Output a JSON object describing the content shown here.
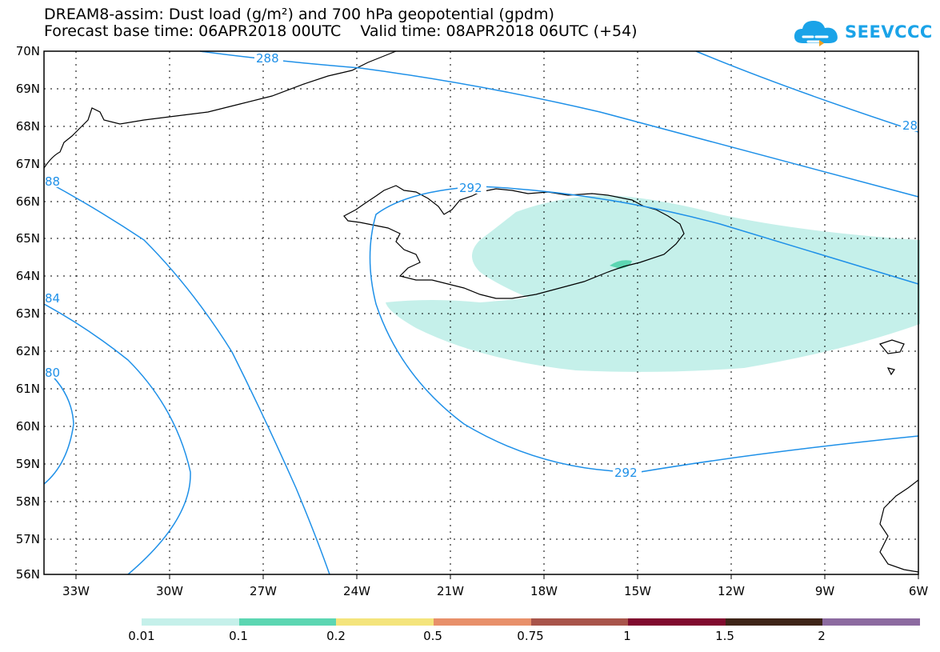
{
  "header": {
    "title_line1": "DREAM8-assim: Dust load (g/m²) and 700 hPa geopotential (gpdm)",
    "title_line2": "Forecast base time: 06APR2018 00UTC    Valid time: 08APR2018 06UTC (+54)"
  },
  "logo": {
    "text": "SEEVCCC",
    "icon": "cloud-icon",
    "color": "#1aa3e8"
  },
  "map": {
    "lat_labels": [
      "70N",
      "69N",
      "68N",
      "67N",
      "66N",
      "65N",
      "64N",
      "63N",
      "62N",
      "61N",
      "60N",
      "59N",
      "58N",
      "57N",
      "56N"
    ],
    "lon_labels": [
      "33W",
      "30W",
      "27W",
      "24W",
      "21W",
      "18W",
      "15W",
      "12W",
      "9W",
      "6W"
    ],
    "contour_color": "#1e90e8",
    "dust_color_low": "#c5f0ea",
    "dust_color_mid": "#5cd6b2",
    "contour_labels": {
      "c288_top": "288",
      "c288_right": "28",
      "c288_left": "88",
      "c292_top": "292",
      "c292_bottom": "292",
      "c284": "84",
      "c280": "80"
    }
  },
  "colorbar": {
    "colors": [
      "#c5f0ea",
      "#5cd6b2",
      "#f4e47c",
      "#e8906a",
      "#a8544a",
      "#800a2e",
      "#3e2418",
      "#8c6aa0"
    ],
    "labels": [
      "0.01",
      "0.1",
      "0.2",
      "0.5",
      "0.75",
      "1",
      "1.5",
      "2"
    ]
  }
}
